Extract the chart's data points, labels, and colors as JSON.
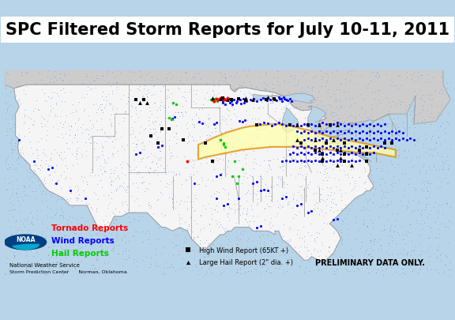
{
  "title": "SPC Filtered Storm Reports for July 10-11, 2011",
  "title_fontsize": 15,
  "background_map_color": "#b8d4e8",
  "land_color": "#f5f5f5",
  "dot_land_color": "#ddeeff",
  "state_edge_color": "#999999",
  "derecho_fill": "#ffffaa",
  "derecho_edge": "#dd8800",
  "legend_box_color": "#ffffff",
  "legend_border": "#000000",
  "tornado_color": "#ff0000",
  "wind_color": "#0000ff",
  "hail_color": "#00cc00",
  "high_wind_color": "#000000",
  "large_hail_color": "#000000",
  "noaa_circle_color": "#005b99",
  "noaa_inner_color": "#00aacc",
  "xlim": [
    -126,
    -65
  ],
  "ylim": [
    23,
    51
  ],
  "dot_color": "#7799cc",
  "canada_color": "#cccccc",
  "wind_reports": [
    [
      -97.3,
      46.9
    ],
    [
      -96.8,
      47.0
    ],
    [
      -96.4,
      47.1
    ],
    [
      -96.1,
      46.8
    ],
    [
      -95.7,
      47.0
    ],
    [
      -95.3,
      47.1
    ],
    [
      -95.0,
      46.7
    ],
    [
      -94.6,
      47.0
    ],
    [
      -94.2,
      46.8
    ],
    [
      -93.8,
      47.0
    ],
    [
      -93.3,
      47.1
    ],
    [
      -92.9,
      46.8
    ],
    [
      -92.4,
      47.0
    ],
    [
      -91.9,
      47.1
    ],
    [
      -91.5,
      46.8
    ],
    [
      -91.0,
      47.0
    ],
    [
      -90.6,
      47.2
    ],
    [
      -90.1,
      46.9
    ],
    [
      -89.7,
      47.0
    ],
    [
      -89.2,
      47.2
    ],
    [
      -88.8,
      46.9
    ],
    [
      -88.4,
      47.1
    ],
    [
      -88.0,
      46.8
    ],
    [
      -87.7,
      47.1
    ],
    [
      -87.3,
      46.9
    ],
    [
      -87.0,
      47.1
    ],
    [
      -86.7,
      46.8
    ],
    [
      -96.2,
      46.5
    ],
    [
      -95.8,
      46.3
    ],
    [
      -95.2,
      46.5
    ],
    [
      -94.8,
      46.3
    ],
    [
      -94.3,
      46.5
    ],
    [
      -93.7,
      46.4
    ],
    [
      -93.2,
      46.5
    ],
    [
      -88.5,
      47.3
    ],
    [
      -88.1,
      47.1
    ],
    [
      -87.8,
      47.3
    ],
    [
      -87.5,
      47.0
    ],
    [
      -103.1,
      44.4
    ],
    [
      -102.7,
      44.6
    ],
    [
      -99.4,
      43.9
    ],
    [
      -99.0,
      43.7
    ],
    [
      -97.3,
      43.6
    ],
    [
      -97.0,
      43.8
    ],
    [
      -93.9,
      44.1
    ],
    [
      -93.5,
      43.9
    ],
    [
      -93.1,
      44.2
    ],
    [
      -91.1,
      43.6
    ],
    [
      -90.5,
      43.8
    ],
    [
      -90.0,
      43.7
    ],
    [
      -89.5,
      43.4
    ],
    [
      -89.0,
      43.6
    ],
    [
      -88.5,
      43.8
    ],
    [
      -88.0,
      43.6
    ],
    [
      -87.5,
      43.4
    ],
    [
      -87.0,
      43.6
    ],
    [
      -86.5,
      43.4
    ],
    [
      -86.0,
      43.6
    ],
    [
      -85.5,
      43.4
    ],
    [
      -85.0,
      43.6
    ],
    [
      -84.5,
      43.4
    ],
    [
      -84.0,
      43.6
    ],
    [
      -83.5,
      43.4
    ],
    [
      -83.0,
      43.6
    ],
    [
      -82.5,
      43.8
    ],
    [
      -82.0,
      43.6
    ],
    [
      -81.5,
      43.4
    ],
    [
      -81.0,
      43.6
    ],
    [
      -80.5,
      43.8
    ],
    [
      -80.0,
      43.6
    ],
    [
      -79.5,
      43.4
    ],
    [
      -79.0,
      43.6
    ],
    [
      -78.5,
      43.4
    ],
    [
      -78.0,
      43.6
    ],
    [
      -77.5,
      43.4
    ],
    [
      -77.0,
      43.6
    ],
    [
      -76.5,
      43.4
    ],
    [
      -76.0,
      43.6
    ],
    [
      -75.5,
      43.4
    ],
    [
      -75.0,
      43.6
    ],
    [
      -74.5,
      43.4
    ],
    [
      -74.0,
      43.6
    ],
    [
      -86.0,
      42.6
    ],
    [
      -85.5,
      42.4
    ],
    [
      -85.0,
      42.6
    ],
    [
      -84.5,
      42.4
    ],
    [
      -84.0,
      42.6
    ],
    [
      -83.5,
      42.4
    ],
    [
      -83.0,
      42.6
    ],
    [
      -82.5,
      42.4
    ],
    [
      -82.0,
      42.6
    ],
    [
      -81.5,
      42.4
    ],
    [
      -81.0,
      42.6
    ],
    [
      -80.5,
      42.4
    ],
    [
      -80.0,
      42.6
    ],
    [
      -79.5,
      42.4
    ],
    [
      -79.0,
      42.6
    ],
    [
      -78.5,
      42.4
    ],
    [
      -78.0,
      42.6
    ],
    [
      -77.5,
      42.4
    ],
    [
      -77.0,
      42.6
    ],
    [
      -76.5,
      42.4
    ],
    [
      -76.0,
      42.6
    ],
    [
      -75.5,
      42.4
    ],
    [
      -75.0,
      42.6
    ],
    [
      -74.5,
      42.4
    ],
    [
      -74.0,
      42.6
    ],
    [
      -73.5,
      42.4
    ],
    [
      -73.0,
      42.6
    ],
    [
      -72.5,
      42.4
    ],
    [
      -72.0,
      42.6
    ],
    [
      -71.5,
      42.4
    ],
    [
      -85.0,
      41.5
    ],
    [
      -84.5,
      41.7
    ],
    [
      -84.0,
      41.5
    ],
    [
      -83.5,
      41.7
    ],
    [
      -83.0,
      41.5
    ],
    [
      -82.5,
      41.7
    ],
    [
      -82.0,
      41.5
    ],
    [
      -81.5,
      41.7
    ],
    [
      -81.0,
      41.5
    ],
    [
      -80.5,
      41.7
    ],
    [
      -80.0,
      41.5
    ],
    [
      -79.5,
      41.7
    ],
    [
      -79.0,
      41.5
    ],
    [
      -78.5,
      41.7
    ],
    [
      -78.0,
      41.5
    ],
    [
      -77.5,
      41.7
    ],
    [
      -77.0,
      41.5
    ],
    [
      -76.5,
      41.7
    ],
    [
      -76.0,
      41.5
    ],
    [
      -75.5,
      41.7
    ],
    [
      -75.0,
      41.5
    ],
    [
      -74.5,
      41.7
    ],
    [
      -74.0,
      41.5
    ],
    [
      -73.5,
      41.7
    ],
    [
      -73.0,
      41.5
    ],
    [
      -72.5,
      41.7
    ],
    [
      -72.0,
      41.5
    ],
    [
      -71.5,
      41.7
    ],
    [
      -71.0,
      41.5
    ],
    [
      -70.5,
      41.7
    ],
    [
      -70.0,
      41.5
    ],
    [
      -86.5,
      40.6
    ],
    [
      -86.0,
      40.4
    ],
    [
      -85.5,
      40.6
    ],
    [
      -85.0,
      40.4
    ],
    [
      -84.5,
      40.6
    ],
    [
      -84.0,
      40.4
    ],
    [
      -83.5,
      40.6
    ],
    [
      -83.0,
      40.4
    ],
    [
      -82.5,
      40.6
    ],
    [
      -82.0,
      40.4
    ],
    [
      -81.5,
      40.6
    ],
    [
      -81.0,
      40.4
    ],
    [
      -80.5,
      40.6
    ],
    [
      -80.0,
      40.4
    ],
    [
      -79.5,
      40.6
    ],
    [
      -79.0,
      40.4
    ],
    [
      -78.5,
      40.6
    ],
    [
      -78.0,
      40.4
    ],
    [
      -77.5,
      40.6
    ],
    [
      -77.0,
      40.4
    ],
    [
      -76.5,
      40.6
    ],
    [
      -76.0,
      40.4
    ],
    [
      -75.5,
      40.6
    ],
    [
      -75.0,
      40.4
    ],
    [
      -74.5,
      40.6
    ],
    [
      -74.0,
      40.4
    ],
    [
      -87.0,
      39.5
    ],
    [
      -86.5,
      39.7
    ],
    [
      -86.0,
      39.5
    ],
    [
      -85.5,
      39.7
    ],
    [
      -85.0,
      39.5
    ],
    [
      -84.5,
      39.7
    ],
    [
      -84.0,
      39.5
    ],
    [
      -83.5,
      39.7
    ],
    [
      -83.0,
      39.5
    ],
    [
      -82.5,
      39.7
    ],
    [
      -82.0,
      39.5
    ],
    [
      -81.5,
      39.7
    ],
    [
      -81.0,
      39.5
    ],
    [
      -80.5,
      39.7
    ],
    [
      -80.0,
      39.5
    ],
    [
      -79.5,
      39.7
    ],
    [
      -79.0,
      39.5
    ],
    [
      -78.5,
      39.7
    ],
    [
      -78.0,
      39.5
    ],
    [
      -77.5,
      39.7
    ],
    [
      -77.0,
      39.5
    ],
    [
      -76.5,
      39.7
    ],
    [
      -76.0,
      39.5
    ],
    [
      -75.5,
      39.7
    ],
    [
      -88.0,
      38.5
    ],
    [
      -87.5,
      38.7
    ],
    [
      -87.0,
      38.5
    ],
    [
      -86.5,
      38.7
    ],
    [
      -86.0,
      38.5
    ],
    [
      -85.5,
      38.7
    ],
    [
      -85.0,
      38.5
    ],
    [
      -84.5,
      38.7
    ],
    [
      -84.0,
      38.5
    ],
    [
      -83.5,
      38.7
    ],
    [
      -83.0,
      38.5
    ],
    [
      -82.5,
      38.7
    ],
    [
      -82.0,
      38.5
    ],
    [
      -81.5,
      38.7
    ],
    [
      -81.0,
      38.5
    ],
    [
      -80.5,
      38.7
    ],
    [
      -80.0,
      38.5
    ],
    [
      -79.5,
      38.7
    ],
    [
      -79.0,
      38.5
    ],
    [
      -78.5,
      38.7
    ],
    [
      -78.0,
      38.5
    ],
    [
      -77.5,
      38.7
    ],
    [
      -105.0,
      40.5
    ],
    [
      -104.5,
      40.7
    ],
    [
      -108.0,
      39.5
    ],
    [
      -107.5,
      39.7
    ],
    [
      -97.0,
      36.5
    ],
    [
      -96.5,
      36.7
    ],
    [
      -92.0,
      35.5
    ],
    [
      -91.5,
      35.7
    ],
    [
      -91.0,
      34.5
    ],
    [
      -90.5,
      34.7
    ],
    [
      -90.0,
      34.5
    ],
    [
      -88.0,
      33.5
    ],
    [
      -87.5,
      33.7
    ],
    [
      -86.0,
      32.5
    ],
    [
      -85.5,
      32.7
    ],
    [
      -84.5,
      31.5
    ],
    [
      -84.0,
      31.7
    ],
    [
      -81.0,
      30.5
    ],
    [
      -80.5,
      30.7
    ],
    [
      -96.0,
      32.5
    ],
    [
      -95.5,
      32.7
    ],
    [
      -117.0,
      34.5
    ],
    [
      -120.0,
      37.5
    ],
    [
      -119.5,
      37.7
    ],
    [
      -91.5,
      29.5
    ],
    [
      -91.0,
      29.7
    ],
    [
      -115.0,
      33.5
    ],
    [
      -119.0,
      35.5
    ],
    [
      -122.0,
      38.5
    ],
    [
      -124.0,
      41.5
    ],
    [
      -100.0,
      35.5
    ],
    [
      -97.0,
      33.5
    ],
    [
      -94.0,
      33.5
    ]
  ],
  "tornado_reports": [
    [
      -97.0,
      47.1
    ],
    [
      -96.8,
      47.0
    ],
    [
      -96.5,
      47.2
    ],
    [
      -96.2,
      47.0
    ],
    [
      -96.0,
      47.1
    ],
    [
      -95.8,
      47.0
    ],
    [
      -95.5,
      47.2
    ],
    [
      -97.3,
      46.8
    ],
    [
      -97.5,
      47.0
    ],
    [
      -101.0,
      38.5
    ]
  ],
  "hail_reports": [
    [
      -97.8,
      47.0
    ],
    [
      -97.5,
      46.9
    ],
    [
      -97.2,
      47.1
    ],
    [
      -96.9,
      46.8
    ],
    [
      -103.5,
      44.5
    ],
    [
      -103.2,
      44.3
    ],
    [
      -96.5,
      41.5
    ],
    [
      -95.8,
      40.5
    ],
    [
      -94.5,
      38.5
    ],
    [
      -93.5,
      37.5
    ],
    [
      -94.8,
      36.5
    ],
    [
      -103.0,
      46.5
    ],
    [
      -102.5,
      46.3
    ],
    [
      -96.0,
      41.0
    ],
    [
      -94.0,
      36.5
    ],
    [
      -94.2,
      35.5
    ],
    [
      -96.5,
      41.5
    ],
    [
      -96.0,
      40.8
    ]
  ],
  "high_wind_reports": [
    [
      -96.2,
      47.2
    ],
    [
      -95.0,
      47.0
    ],
    [
      -94.0,
      47.1
    ],
    [
      -93.0,
      46.9
    ],
    [
      -90.2,
      47.0
    ],
    [
      -89.1,
      47.1
    ],
    [
      -87.0,
      43.5
    ],
    [
      -84.5,
      43.5
    ],
    [
      -81.5,
      43.5
    ],
    [
      -85.5,
      41.0
    ],
    [
      -82.0,
      41.0
    ],
    [
      -79.5,
      41.0
    ],
    [
      -83.5,
      40.0
    ],
    [
      -80.5,
      40.0
    ],
    [
      -77.5,
      40.0
    ],
    [
      -82.5,
      39.5
    ],
    [
      -79.5,
      39.5
    ],
    [
      -82.5,
      38.5
    ],
    [
      -79.5,
      38.5
    ],
    [
      -108.0,
      47.0
    ],
    [
      -107.0,
      47.0
    ],
    [
      -104.5,
      43.0
    ],
    [
      -103.5,
      43.0
    ],
    [
      -106.0,
      42.0
    ],
    [
      -105.0,
      41.0
    ],
    [
      -101.5,
      41.5
    ],
    [
      -98.5,
      41.0
    ],
    [
      -97.5,
      38.5
    ],
    [
      -91.5,
      43.5
    ],
    [
      -76.5,
      40.5
    ],
    [
      -76.5,
      39.5
    ],
    [
      -76.5,
      38.5
    ],
    [
      -74.0,
      41.0
    ],
    [
      -73.0,
      41.0
    ]
  ],
  "large_hail_reports": [
    [
      -97.5,
      47.2
    ],
    [
      -96.5,
      47.1
    ],
    [
      -95.5,
      47.0
    ],
    [
      -93.0,
      47.2
    ],
    [
      -92.0,
      47.0
    ],
    [
      -90.0,
      47.3
    ],
    [
      -89.0,
      47.1
    ],
    [
      -107.5,
      46.5
    ],
    [
      -106.5,
      46.5
    ],
    [
      -86.0,
      43.5
    ],
    [
      -83.0,
      43.5
    ],
    [
      -80.5,
      43.5
    ],
    [
      -86.0,
      41.5
    ],
    [
      -83.5,
      41.5
    ],
    [
      -81.0,
      41.5
    ],
    [
      -83.0,
      40.0
    ],
    [
      -80.0,
      40.0
    ],
    [
      -82.5,
      39.0
    ],
    [
      -80.0,
      39.0
    ],
    [
      -80.5,
      38.0
    ],
    [
      -78.5,
      38.0
    ]
  ],
  "derecho_top": [
    [
      -99.5,
      40.8
    ],
    [
      -98.5,
      41.2
    ],
    [
      -97.5,
      41.7
    ],
    [
      -96.5,
      42.1
    ],
    [
      -95.5,
      42.5
    ],
    [
      -94.5,
      42.8
    ],
    [
      -93.5,
      43.1
    ],
    [
      -92.5,
      43.3
    ],
    [
      -91.5,
      43.4
    ],
    [
      -90.5,
      43.5
    ],
    [
      -89.5,
      43.6
    ],
    [
      -88.5,
      43.6
    ],
    [
      -87.5,
      43.5
    ],
    [
      -87.0,
      43.4
    ],
    [
      -86.5,
      43.3
    ],
    [
      -85.5,
      43.0
    ],
    [
      -84.5,
      42.8
    ],
    [
      -83.5,
      42.5
    ],
    [
      -82.5,
      42.2
    ],
    [
      -81.5,
      41.9
    ],
    [
      -80.5,
      41.7
    ],
    [
      -79.5,
      41.5
    ],
    [
      -78.5,
      41.3
    ],
    [
      -77.5,
      41.1
    ],
    [
      -76.5,
      40.9
    ],
    [
      -75.5,
      40.7
    ],
    [
      -74.5,
      40.5
    ],
    [
      -73.5,
      40.3
    ],
    [
      -72.5,
      40.1
    ]
  ],
  "derecho_bottom": [
    [
      -99.5,
      38.8
    ],
    [
      -98.5,
      39.1
    ],
    [
      -97.5,
      39.3
    ],
    [
      -96.5,
      39.5
    ],
    [
      -95.5,
      39.7
    ],
    [
      -94.5,
      39.9
    ],
    [
      -93.5,
      40.1
    ],
    [
      -92.5,
      40.2
    ],
    [
      -91.5,
      40.3
    ],
    [
      -90.5,
      40.4
    ],
    [
      -89.5,
      40.5
    ],
    [
      -88.5,
      40.5
    ],
    [
      -87.5,
      40.5
    ],
    [
      -87.0,
      40.5
    ],
    [
      -86.5,
      40.5
    ],
    [
      -85.5,
      40.5
    ],
    [
      -84.5,
      40.4
    ],
    [
      -83.5,
      40.3
    ],
    [
      -82.5,
      40.2
    ],
    [
      -81.5,
      40.1
    ],
    [
      -80.5,
      40.0
    ],
    [
      -79.5,
      39.9
    ],
    [
      -78.5,
      39.8
    ],
    [
      -77.5,
      39.7
    ],
    [
      -76.5,
      39.7
    ],
    [
      -75.5,
      39.7
    ],
    [
      -74.5,
      39.5
    ],
    [
      -73.5,
      39.3
    ],
    [
      -72.5,
      39.1
    ]
  ]
}
